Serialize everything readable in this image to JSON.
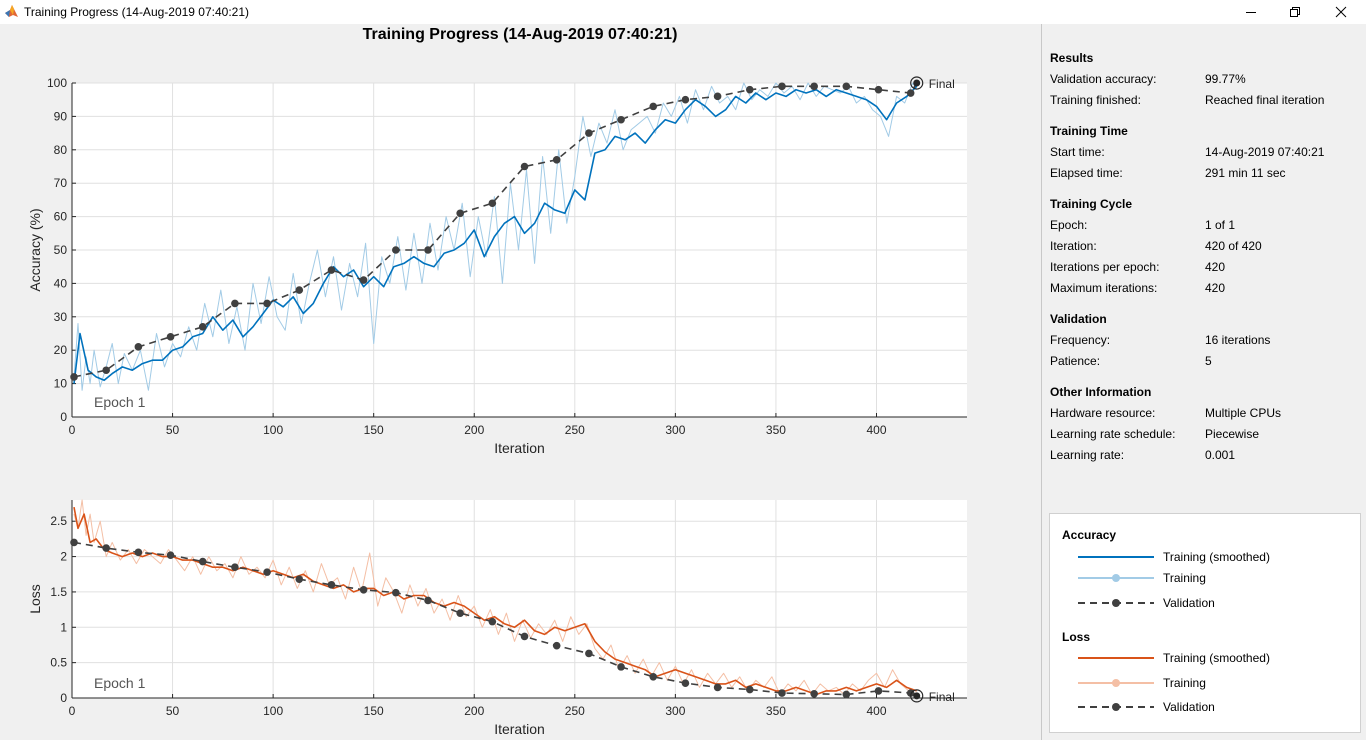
{
  "window": {
    "title": "Training Progress (14-Aug-2019 07:40:21)",
    "icons": [
      "matlab-icon",
      "minimize-icon",
      "maximize-icon",
      "close-icon"
    ]
  },
  "figure": {
    "title": "Training Progress (14-Aug-2019 07:40:21)",
    "epoch_label": "Epoch 1",
    "final_label": "Final"
  },
  "chart_data": [
    {
      "type": "line",
      "name": "accuracy",
      "xlabel": "Iteration",
      "ylabel": "Accuracy (%)",
      "xlim": [
        0,
        445
      ],
      "ylim": [
        0,
        100
      ],
      "xticks": [
        0,
        50,
        100,
        150,
        200,
        250,
        300,
        350,
        400
      ],
      "yticks": [
        0,
        10,
        20,
        30,
        40,
        50,
        60,
        70,
        80,
        90,
        100
      ],
      "grid": true,
      "series": [
        {
          "name": "Training (smoothed)",
          "color": "#0072bd",
          "x": [
            1,
            4,
            8,
            12,
            16,
            20,
            25,
            30,
            35,
            40,
            45,
            50,
            55,
            60,
            65,
            70,
            75,
            80,
            85,
            90,
            95,
            100,
            105,
            110,
            115,
            120,
            125,
            130,
            135,
            140,
            145,
            150,
            155,
            160,
            165,
            170,
            175,
            180,
            185,
            190,
            195,
            200,
            205,
            210,
            215,
            220,
            225,
            230,
            235,
            240,
            245,
            250,
            255,
            260,
            265,
            270,
            275,
            280,
            285,
            290,
            295,
            300,
            305,
            310,
            315,
            320,
            325,
            330,
            335,
            340,
            345,
            350,
            355,
            360,
            365,
            370,
            375,
            380,
            385,
            390,
            395,
            400,
            405,
            410,
            415,
            420
          ],
          "y": [
            10,
            25,
            14,
            12,
            11,
            13,
            15,
            14,
            16,
            17,
            17,
            20,
            21,
            24,
            25,
            30,
            26,
            29,
            24,
            27,
            31,
            35,
            33,
            36,
            31,
            34,
            40,
            45,
            42,
            44,
            39,
            42,
            39,
            45,
            46,
            48,
            46,
            45,
            49,
            50,
            52,
            56,
            48,
            54,
            58,
            60,
            55,
            58,
            64,
            62,
            61,
            68,
            65,
            79,
            80,
            84,
            83,
            85,
            82,
            86,
            89,
            88,
            92,
            95,
            93,
            90,
            92,
            96,
            94,
            97,
            95,
            97,
            96,
            98,
            97,
            98,
            96,
            98,
            97,
            96,
            95,
            93,
            89,
            94,
            96,
            99
          ]
        },
        {
          "name": "Training",
          "color": "#a2cbe6",
          "x": [
            1,
            3,
            5,
            7,
            9,
            11,
            14,
            17,
            20,
            23,
            26,
            30,
            34,
            38,
            42,
            46,
            50,
            54,
            58,
            62,
            66,
            70,
            74,
            78,
            82,
            86,
            90,
            94,
            98,
            102,
            106,
            110,
            114,
            118,
            122,
            126,
            130,
            134,
            138,
            142,
            146,
            150,
            154,
            158,
            162,
            166,
            170,
            174,
            178,
            182,
            186,
            190,
            194,
            198,
            202,
            206,
            210,
            214,
            218,
            222,
            226,
            230,
            234,
            238,
            242,
            246,
            250,
            254,
            258,
            262,
            266,
            270,
            274,
            278,
            282,
            286,
            290,
            294,
            298,
            302,
            306,
            310,
            314,
            318,
            322,
            326,
            330,
            334,
            338,
            342,
            346,
            350,
            354,
            358,
            362,
            366,
            370,
            374,
            378,
            382,
            386,
            390,
            394,
            398,
            402,
            406,
            410,
            414,
            418,
            420
          ],
          "y": [
            12,
            28,
            8,
            18,
            10,
            20,
            9,
            15,
            22,
            10,
            19,
            14,
            20,
            8,
            25,
            15,
            22,
            18,
            27,
            20,
            34,
            24,
            38,
            22,
            33,
            20,
            40,
            28,
            42,
            30,
            26,
            43,
            28,
            40,
            50,
            36,
            48,
            32,
            46,
            36,
            52,
            22,
            48,
            40,
            54,
            38,
            55,
            40,
            58,
            44,
            60,
            50,
            64,
            42,
            60,
            48,
            66,
            40,
            70,
            50,
            74,
            46,
            78,
            55,
            80,
            58,
            72,
            90,
            78,
            88,
            82,
            92,
            80,
            86,
            88,
            90,
            85,
            94,
            90,
            96,
            88,
            98,
            92,
            99,
            94,
            96,
            92,
            100,
            95,
            98,
            96,
            100,
            97,
            99,
            95,
            100,
            96,
            99,
            98,
            97,
            99,
            94,
            96,
            92,
            90,
            84,
            96,
            94,
            100,
            98
          ]
        },
        {
          "name": "Validation",
          "color": "#404040",
          "dashed": true,
          "markers": true,
          "x": [
            1,
            17,
            33,
            49,
            65,
            81,
            97,
            113,
            129,
            145,
            161,
            177,
            193,
            209,
            225,
            241,
            257,
            273,
            289,
            305,
            321,
            337,
            353,
            369,
            385,
            401,
            417,
            420
          ],
          "y": [
            12,
            14,
            21,
            24,
            27,
            34,
            34,
            38,
            44,
            41,
            50,
            50,
            61,
            64,
            75,
            77,
            85,
            89,
            93,
            95,
            96,
            98,
            99,
            99,
            99,
            98,
            97,
            100
          ]
        }
      ]
    },
    {
      "type": "line",
      "name": "loss",
      "xlabel": "Iteration",
      "ylabel": "Loss",
      "xlim": [
        0,
        445
      ],
      "ylim": [
        0,
        2.8
      ],
      "xticks": [
        0,
        50,
        100,
        150,
        200,
        250,
        300,
        350,
        400
      ],
      "yticks": [
        0,
        0.5,
        1,
        1.5,
        2,
        2.5
      ],
      "grid": true,
      "series": [
        {
          "name": "Training (smoothed)",
          "color": "#d95319",
          "x": [
            1,
            3,
            6,
            9,
            12,
            16,
            20,
            25,
            30,
            35,
            40,
            45,
            50,
            55,
            60,
            65,
            70,
            75,
            80,
            85,
            90,
            95,
            100,
            105,
            110,
            115,
            120,
            125,
            130,
            135,
            140,
            145,
            150,
            155,
            160,
            165,
            170,
            175,
            180,
            185,
            190,
            195,
            200,
            205,
            210,
            215,
            220,
            225,
            230,
            235,
            240,
            245,
            250,
            255,
            260,
            265,
            270,
            275,
            280,
            285,
            290,
            295,
            300,
            305,
            310,
            315,
            320,
            325,
            330,
            335,
            340,
            345,
            350,
            355,
            360,
            365,
            370,
            375,
            380,
            385,
            390,
            395,
            400,
            405,
            410,
            415,
            420
          ],
          "y": [
            2.7,
            2.4,
            2.6,
            2.2,
            2.25,
            2.1,
            2.05,
            2.0,
            2.05,
            2.0,
            2.05,
            2.0,
            2.0,
            1.95,
            1.95,
            1.9,
            1.85,
            1.85,
            1.8,
            1.85,
            1.8,
            1.75,
            1.8,
            1.75,
            1.7,
            1.75,
            1.65,
            1.6,
            1.55,
            1.6,
            1.5,
            1.55,
            1.55,
            1.45,
            1.5,
            1.4,
            1.45,
            1.45,
            1.35,
            1.3,
            1.35,
            1.3,
            1.2,
            1.1,
            1.15,
            1.05,
            1.0,
            1.1,
            0.95,
            0.9,
            1.0,
            0.95,
            1.0,
            1.05,
            0.8,
            0.65,
            0.55,
            0.5,
            0.45,
            0.4,
            0.3,
            0.35,
            0.4,
            0.35,
            0.3,
            0.25,
            0.2,
            0.2,
            0.25,
            0.15,
            0.2,
            0.15,
            0.1,
            0.1,
            0.15,
            0.1,
            0.05,
            0.1,
            0.1,
            0.15,
            0.1,
            0.15,
            0.2,
            0.15,
            0.25,
            0.15,
            0.1
          ]
        },
        {
          "name": "Training",
          "color": "#f4bfa5",
          "x": [
            1,
            3,
            5,
            7,
            9,
            11,
            14,
            17,
            20,
            24,
            28,
            32,
            36,
            40,
            44,
            48,
            52,
            56,
            60,
            64,
            68,
            72,
            76,
            80,
            84,
            88,
            92,
            96,
            100,
            104,
            108,
            112,
            116,
            120,
            124,
            128,
            132,
            136,
            140,
            144,
            148,
            152,
            156,
            160,
            164,
            168,
            172,
            176,
            180,
            184,
            188,
            192,
            196,
            200,
            204,
            208,
            212,
            216,
            220,
            224,
            228,
            232,
            236,
            240,
            244,
            248,
            252,
            256,
            260,
            264,
            268,
            272,
            276,
            280,
            284,
            288,
            292,
            296,
            300,
            304,
            308,
            312,
            316,
            320,
            324,
            328,
            332,
            336,
            340,
            344,
            348,
            352,
            356,
            360,
            364,
            368,
            372,
            376,
            380,
            384,
            388,
            392,
            396,
            400,
            404,
            408,
            412,
            416,
            420
          ],
          "y": [
            2.6,
            2.4,
            2.8,
            2.3,
            2.6,
            2.2,
            2.5,
            2.0,
            2.2,
            1.95,
            2.1,
            1.9,
            2.1,
            2.0,
            1.9,
            2.1,
            1.95,
            1.8,
            2.0,
            1.75,
            2.0,
            1.8,
            1.9,
            1.7,
            2.0,
            1.75,
            1.85,
            1.7,
            1.95,
            1.6,
            1.85,
            1.55,
            1.8,
            1.5,
            1.9,
            1.6,
            1.7,
            1.4,
            1.85,
            1.5,
            2.05,
            1.3,
            1.7,
            1.5,
            1.2,
            1.6,
            1.3,
            1.55,
            1.2,
            1.4,
            1.1,
            1.45,
            1.15,
            1.3,
            1.0,
            1.25,
            0.9,
            1.2,
            0.8,
            1.1,
            0.85,
            1.05,
            0.9,
            1.1,
            0.8,
            1.15,
            0.9,
            1.05,
            0.7,
            0.55,
            0.75,
            0.4,
            0.6,
            0.35,
            0.55,
            0.3,
            0.5,
            0.25,
            0.45,
            0.2,
            0.4,
            0.15,
            0.35,
            0.2,
            0.35,
            0.15,
            0.3,
            0.1,
            0.25,
            0.15,
            0.3,
            0.05,
            0.2,
            0.1,
            0.25,
            0.05,
            0.2,
            0.1,
            0.15,
            0.05,
            0.2,
            0.1,
            0.25,
            0.35,
            0.15,
            0.4,
            0.2,
            0.1,
            0.05
          ]
        },
        {
          "name": "Validation",
          "color": "#404040",
          "dashed": true,
          "markers": true,
          "x": [
            1,
            17,
            33,
            49,
            65,
            81,
            97,
            113,
            129,
            145,
            161,
            177,
            193,
            209,
            225,
            241,
            257,
            273,
            289,
            305,
            321,
            337,
            353,
            369,
            385,
            401,
            417,
            420
          ],
          "y": [
            2.2,
            2.12,
            2.06,
            2.02,
            1.93,
            1.85,
            1.78,
            1.68,
            1.6,
            1.53,
            1.49,
            1.38,
            1.2,
            1.08,
            0.87,
            0.74,
            0.63,
            0.44,
            0.3,
            0.21,
            0.15,
            0.12,
            0.07,
            0.06,
            0.05,
            0.1,
            0.07,
            0.03
          ]
        }
      ]
    }
  ],
  "results": {
    "title": "Results",
    "rows": [
      {
        "label": "Validation accuracy:",
        "value": "99.77%"
      },
      {
        "label": "Training finished:",
        "value": "Reached final iteration"
      }
    ]
  },
  "training_time": {
    "title": "Training Time",
    "rows": [
      {
        "label": "Start time:",
        "value": "14-Aug-2019 07:40:21"
      },
      {
        "label": "Elapsed time:",
        "value": "291 min 11 sec"
      }
    ]
  },
  "training_cycle": {
    "title": "Training Cycle",
    "rows": [
      {
        "label": "Epoch:",
        "value": "1 of 1"
      },
      {
        "label": "Iteration:",
        "value": "420 of 420"
      },
      {
        "label": "Iterations per epoch:",
        "value": "420"
      },
      {
        "label": "Maximum iterations:",
        "value": "420"
      }
    ]
  },
  "validation": {
    "title": "Validation",
    "rows": [
      {
        "label": "Frequency:",
        "value": "16 iterations"
      },
      {
        "label": "Patience:",
        "value": "5"
      }
    ]
  },
  "other_info": {
    "title": "Other Information",
    "rows": [
      {
        "label": "Hardware resource:",
        "value": "Multiple CPUs"
      },
      {
        "label": "Learning rate schedule:",
        "value": "Piecewise"
      },
      {
        "label": "Learning rate:",
        "value": "0.001"
      }
    ]
  },
  "legend": {
    "accuracy_title": "Accuracy",
    "loss_title": "Loss",
    "smoothed": "Training (smoothed)",
    "training": "Training",
    "validation": "Validation",
    "colors": {
      "acc_smoothed": "#0072bd",
      "acc_training": "#a2cbe6",
      "loss_smoothed": "#d95319",
      "loss_training": "#f4bfa5",
      "validation": "#404040"
    }
  }
}
